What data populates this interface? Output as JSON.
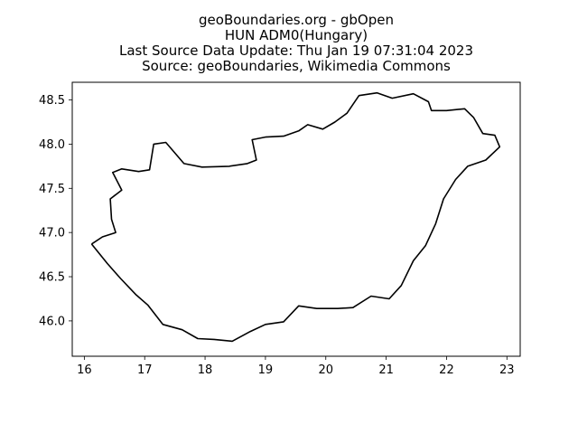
{
  "title_lines": [
    "geoBoundaries.org - gbOpen",
    "HUN ADM0(Hungary)",
    "Last Source Data Update: Thu Jan 19 07:31:04 2023",
    "Source: geoBoundaries, Wikimedia Commons"
  ],
  "chart_data": {
    "type": "line",
    "xlim": [
      15.8,
      23.22
    ],
    "ylim": [
      45.6,
      48.7
    ],
    "x_ticks": [
      16,
      17,
      18,
      19,
      20,
      21,
      22,
      23
    ],
    "y_ticks": [
      46.0,
      46.5,
      47.0,
      47.5,
      48.0,
      48.5
    ],
    "x_tick_labels": [
      "16",
      "17",
      "18",
      "19",
      "20",
      "21",
      "22",
      "23"
    ],
    "y_tick_labels": [
      "46.0",
      "46.5",
      "47.0",
      "47.5",
      "48.0",
      "48.5"
    ],
    "grid": false,
    "boundary_color": "#000000",
    "boundary": [
      [
        16.12,
        46.87
      ],
      [
        16.3,
        46.95
      ],
      [
        16.52,
        47.0
      ],
      [
        16.45,
        47.15
      ],
      [
        16.43,
        47.38
      ],
      [
        16.62,
        47.48
      ],
      [
        16.47,
        47.68
      ],
      [
        16.62,
        47.72
      ],
      [
        16.9,
        47.69
      ],
      [
        17.08,
        47.71
      ],
      [
        17.15,
        48.0
      ],
      [
        17.35,
        48.02
      ],
      [
        17.65,
        47.78
      ],
      [
        17.95,
        47.74
      ],
      [
        18.4,
        47.75
      ],
      [
        18.7,
        47.78
      ],
      [
        18.85,
        47.82
      ],
      [
        18.78,
        48.05
      ],
      [
        19.0,
        48.08
      ],
      [
        19.3,
        48.09
      ],
      [
        19.55,
        48.15
      ],
      [
        19.7,
        48.22
      ],
      [
        19.95,
        48.17
      ],
      [
        20.15,
        48.25
      ],
      [
        20.35,
        48.35
      ],
      [
        20.55,
        48.55
      ],
      [
        20.85,
        48.58
      ],
      [
        21.1,
        48.52
      ],
      [
        21.45,
        48.57
      ],
      [
        21.7,
        48.48
      ],
      [
        21.75,
        48.38
      ],
      [
        22.0,
        48.38
      ],
      [
        22.3,
        48.4
      ],
      [
        22.45,
        48.3
      ],
      [
        22.6,
        48.12
      ],
      [
        22.8,
        48.1
      ],
      [
        22.88,
        47.97
      ],
      [
        22.65,
        47.82
      ],
      [
        22.35,
        47.75
      ],
      [
        22.15,
        47.6
      ],
      [
        21.95,
        47.38
      ],
      [
        21.82,
        47.1
      ],
      [
        21.65,
        46.85
      ],
      [
        21.45,
        46.68
      ],
      [
        21.25,
        46.4
      ],
      [
        21.05,
        46.25
      ],
      [
        20.75,
        46.28
      ],
      [
        20.45,
        46.15
      ],
      [
        20.2,
        46.14
      ],
      [
        19.85,
        46.14
      ],
      [
        19.55,
        46.17
      ],
      [
        19.3,
        45.99
      ],
      [
        19.0,
        45.96
      ],
      [
        18.75,
        45.88
      ],
      [
        18.45,
        45.77
      ],
      [
        18.15,
        45.79
      ],
      [
        17.88,
        45.8
      ],
      [
        17.62,
        45.9
      ],
      [
        17.3,
        45.96
      ],
      [
        17.05,
        46.18
      ],
      [
        16.85,
        46.3
      ],
      [
        16.6,
        46.48
      ],
      [
        16.38,
        46.65
      ],
      [
        16.12,
        46.87
      ]
    ]
  }
}
